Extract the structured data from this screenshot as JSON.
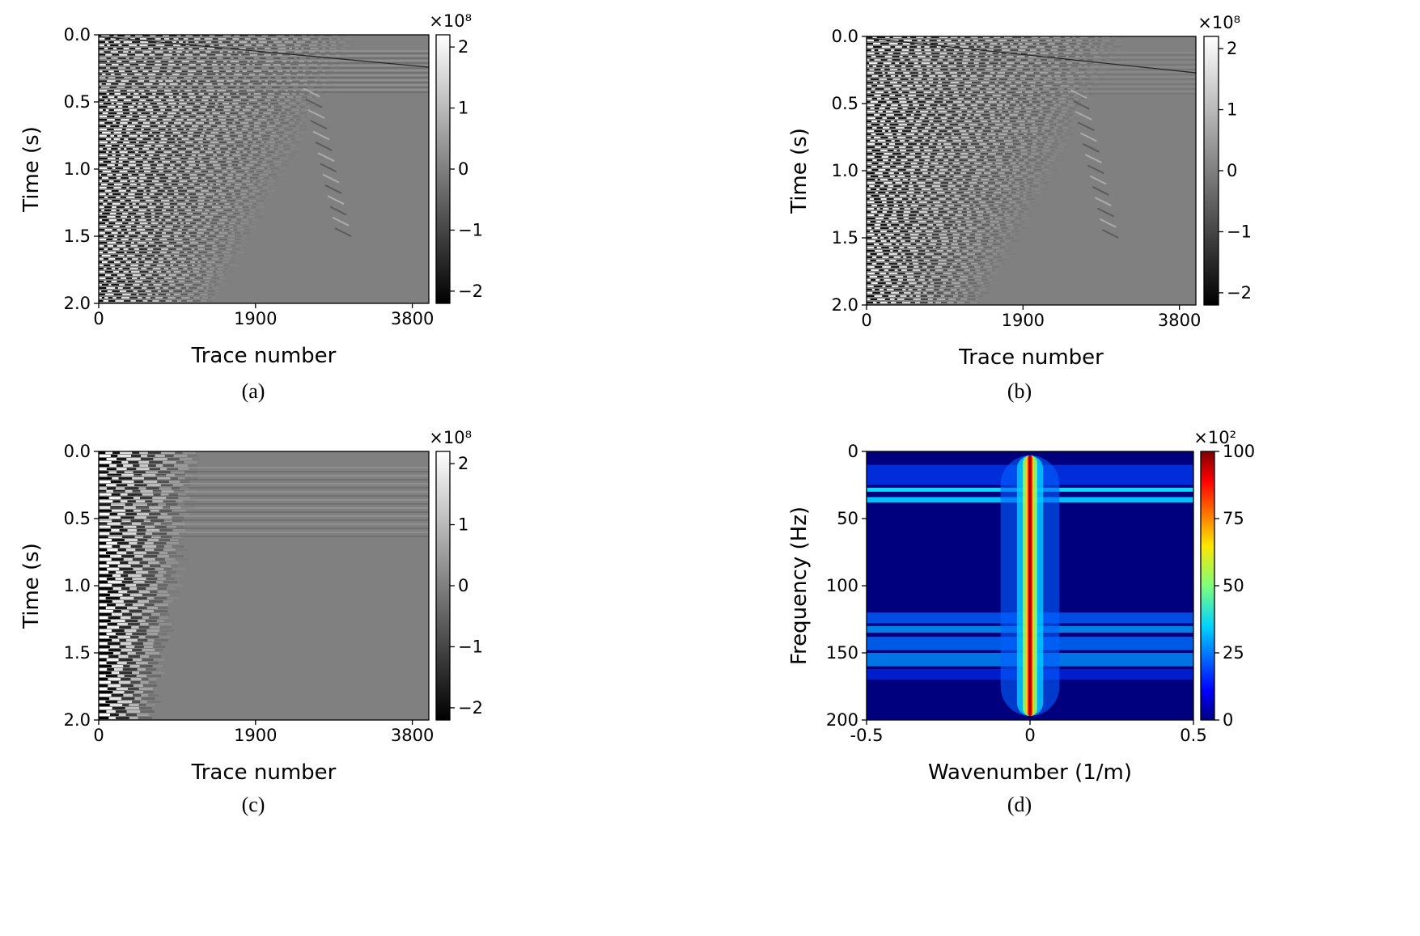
{
  "chart_data": [
    {
      "type": "image",
      "caption": "(a)",
      "xlabel": "Trace number",
      "ylabel": "Time (s)",
      "xlim": [
        0,
        4000
      ],
      "ylim": [
        0,
        2
      ],
      "y_inverted": true,
      "xticks": [
        0,
        1900,
        3800
      ],
      "yticks": [
        {
          "value": 0,
          "label": "0.0"
        },
        {
          "value": 0.5,
          "label": "0.5"
        },
        {
          "value": 1,
          "label": "1.0"
        },
        {
          "value": 1.5,
          "label": "1.5"
        },
        {
          "value": 2,
          "label": "2.0"
        }
      ],
      "colormap": "gray",
      "colorbar": {
        "lim": [
          -2.2,
          2.2
        ],
        "ticks": [
          {
            "value": -2,
            "label": "−2"
          },
          {
            "value": -1,
            "label": "−1"
          },
          0,
          1,
          2
        ],
        "scale_label": "×10⁸"
      }
    },
    {
      "type": "image",
      "caption": "(b)",
      "xlabel": "Trace number",
      "ylabel": "Time (s)",
      "xlim": [
        0,
        4000
      ],
      "ylim": [
        0,
        2
      ],
      "y_inverted": true,
      "xticks": [
        0,
        1900,
        3800
      ],
      "yticks": [
        {
          "value": 0,
          "label": "0.0"
        },
        {
          "value": 0.5,
          "label": "0.5"
        },
        {
          "value": 1,
          "label": "1.0"
        },
        {
          "value": 1.5,
          "label": "1.5"
        },
        {
          "value": 2,
          "label": "2.0"
        }
      ],
      "colormap": "gray",
      "colorbar": {
        "lim": [
          -2.2,
          2.2
        ],
        "ticks": [
          {
            "value": -2,
            "label": "−2"
          },
          {
            "value": -1,
            "label": "−1"
          },
          0,
          1,
          2
        ],
        "scale_label": "×10⁸"
      }
    },
    {
      "type": "image",
      "caption": "(c)",
      "xlabel": "Trace number",
      "ylabel": "Time (s)",
      "xlim": [
        0,
        4000
      ],
      "ylim": [
        0,
        2
      ],
      "y_inverted": true,
      "xticks": [
        0,
        1900,
        3800
      ],
      "yticks": [
        {
          "value": 0,
          "label": "0.0"
        },
        {
          "value": 0.5,
          "label": "0.5"
        },
        {
          "value": 1,
          "label": "1.0"
        },
        {
          "value": 1.5,
          "label": "1.5"
        },
        {
          "value": 2,
          "label": "2.0"
        }
      ],
      "colormap": "gray",
      "colorbar": {
        "lim": [
          -2.2,
          2.2
        ],
        "ticks": [
          {
            "value": -2,
            "label": "−2"
          },
          {
            "value": -1,
            "label": "−1"
          },
          0,
          1,
          2
        ],
        "scale_label": "×10⁸"
      }
    },
    {
      "type": "image",
      "caption": "(d)",
      "xlabel": "Wavenumber (1/m)",
      "ylabel": "Frequency (Hz)",
      "xlim": [
        -0.5,
        0.5
      ],
      "ylim": [
        0,
        200
      ],
      "y_inverted": true,
      "xticks": [
        -0.5,
        0,
        0.5
      ],
      "yticks": [
        0,
        50,
        100,
        150,
        200
      ],
      "colormap": "jet",
      "colorbar": {
        "lim": [
          0,
          100
        ],
        "ticks": [
          0,
          25,
          50,
          75,
          100
        ],
        "scale_label": "×10²"
      }
    }
  ]
}
